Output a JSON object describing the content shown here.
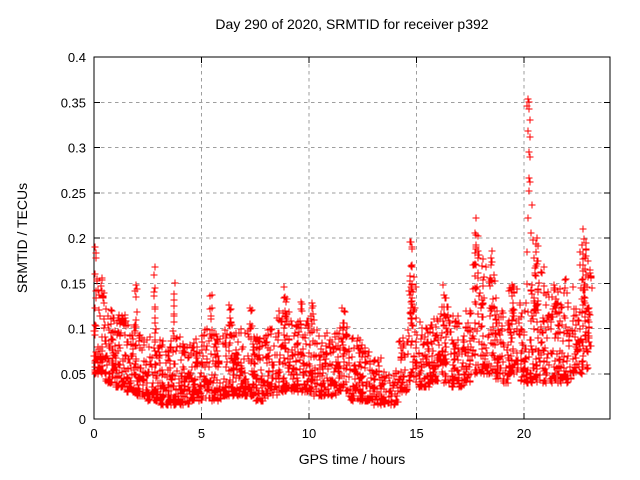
{
  "chart_data": {
    "type": "scatter",
    "title": "Day 290 of 2020, SRMTID for receiver p392",
    "xlabel": "GPS time / hours",
    "ylabel": "SRMTID / TECUs",
    "xlim": [
      0,
      24
    ],
    "ylim": [
      0,
      0.4
    ],
    "xticks": {
      "values": [
        0,
        5,
        10,
        15,
        20
      ],
      "labels": [
        "0",
        "5",
        "10",
        "15",
        "20"
      ]
    },
    "yticks": {
      "values": [
        0,
        0.05,
        0.1,
        0.15,
        0.2,
        0.25,
        0.3,
        0.35,
        0.4
      ],
      "labels": [
        "0",
        "0.05",
        "0.1",
        "0.15",
        "0.2",
        "0.25",
        "0.3",
        "0.35",
        "0.4"
      ]
    },
    "grid": {
      "show": true,
      "style": "dashed",
      "color": "#9e9e9e"
    },
    "legend": {
      "show": false
    },
    "marker": {
      "shape": "plus",
      "color": "#ff0000",
      "size": 7
    },
    "border_color": "#000000",
    "background_color": "#ffffff",
    "x_data_extent": [
      0,
      23.15
    ],
    "n_points_total_approx": 2800,
    "seed": 1290392,
    "segment_fields": [
      "x_start",
      "x_end",
      "n_points",
      "y_min",
      "y_max",
      "bottom_bias"
    ],
    "baseline_segments": [
      [
        0.0,
        0.5,
        70,
        0.05,
        0.16,
        1.5
      ],
      [
        0.5,
        1.0,
        65,
        0.04,
        0.125,
        1.7
      ],
      [
        1.0,
        1.5,
        65,
        0.035,
        0.115,
        1.7
      ],
      [
        1.5,
        2.0,
        65,
        0.03,
        0.112,
        1.7
      ],
      [
        2.0,
        2.5,
        60,
        0.025,
        0.095,
        1.7
      ],
      [
        2.5,
        3.0,
        60,
        0.02,
        0.1,
        1.7
      ],
      [
        3.0,
        3.5,
        60,
        0.015,
        0.088,
        1.6
      ],
      [
        3.5,
        4.0,
        60,
        0.015,
        0.092,
        1.6
      ],
      [
        4.0,
        4.5,
        58,
        0.015,
        0.085,
        1.6
      ],
      [
        4.5,
        5.0,
        58,
        0.02,
        0.09,
        1.6
      ],
      [
        5.0,
        5.5,
        58,
        0.02,
        0.1,
        1.6
      ],
      [
        5.5,
        6.0,
        58,
        0.02,
        0.095,
        1.6
      ],
      [
        6.0,
        6.5,
        58,
        0.025,
        0.105,
        1.6
      ],
      [
        6.5,
        7.0,
        58,
        0.025,
        0.1,
        1.6
      ],
      [
        7.0,
        7.5,
        58,
        0.025,
        0.105,
        1.6
      ],
      [
        7.5,
        8.0,
        58,
        0.02,
        0.095,
        1.6
      ],
      [
        8.0,
        8.5,
        58,
        0.025,
        0.1,
        1.6
      ],
      [
        8.5,
        9.1,
        68,
        0.03,
        0.12,
        1.6
      ],
      [
        9.1,
        9.6,
        58,
        0.03,
        0.11,
        1.6
      ],
      [
        9.6,
        10.2,
        68,
        0.03,
        0.115,
        1.6
      ],
      [
        10.2,
        10.8,
        65,
        0.025,
        0.1,
        1.6
      ],
      [
        10.8,
        11.4,
        65,
        0.025,
        0.095,
        1.6
      ],
      [
        11.4,
        11.8,
        45,
        0.03,
        0.11,
        1.5
      ],
      [
        11.8,
        12.4,
        65,
        0.02,
        0.09,
        1.6
      ],
      [
        12.4,
        13.0,
        62,
        0.02,
        0.085,
        1.6
      ],
      [
        13.0,
        13.4,
        38,
        0.015,
        0.07,
        1.5
      ],
      [
        13.4,
        14.2,
        55,
        0.015,
        0.055,
        1.3
      ],
      [
        14.2,
        14.6,
        42,
        0.03,
        0.09,
        1.5
      ],
      [
        14.6,
        15.0,
        48,
        0.04,
        0.16,
        1.6
      ],
      [
        15.0,
        15.6,
        65,
        0.035,
        0.11,
        1.6
      ],
      [
        15.6,
        16.1,
        56,
        0.04,
        0.12,
        1.6
      ],
      [
        16.1,
        16.6,
        56,
        0.04,
        0.135,
        1.6
      ],
      [
        16.6,
        17.2,
        65,
        0.035,
        0.115,
        1.6
      ],
      [
        17.2,
        17.6,
        48,
        0.04,
        0.12,
        1.6
      ],
      [
        17.6,
        18.1,
        55,
        0.05,
        0.185,
        1.8
      ],
      [
        18.1,
        18.7,
        62,
        0.05,
        0.17,
        1.8
      ],
      [
        18.7,
        19.3,
        62,
        0.04,
        0.12,
        1.6
      ],
      [
        19.3,
        19.8,
        55,
        0.05,
        0.15,
        1.7
      ],
      [
        19.8,
        20.1,
        36,
        0.04,
        0.13,
        1.6
      ],
      [
        20.1,
        20.5,
        48,
        0.04,
        0.16,
        1.8
      ],
      [
        20.5,
        21.0,
        58,
        0.04,
        0.175,
        1.8
      ],
      [
        21.0,
        21.6,
        62,
        0.04,
        0.145,
        1.7
      ],
      [
        21.6,
        22.3,
        70,
        0.04,
        0.155,
        1.7
      ],
      [
        22.3,
        22.6,
        36,
        0.05,
        0.125,
        1.6
      ],
      [
        22.6,
        23.0,
        52,
        0.05,
        0.19,
        1.4
      ],
      [
        23.0,
        23.15,
        16,
        0.08,
        0.165,
        1.2
      ]
    ],
    "column_fields": [
      "x_center",
      "x_halfwidth",
      "n_points",
      "y_min",
      "y_max"
    ],
    "peak_columns": [
      [
        1.95,
        0.06,
        6,
        0.1,
        0.148
      ],
      [
        2.85,
        0.05,
        8,
        0.1,
        0.168
      ],
      [
        3.72,
        0.07,
        7,
        0.09,
        0.147
      ],
      [
        5.45,
        0.06,
        7,
        0.09,
        0.14
      ],
      [
        6.35,
        0.08,
        8,
        0.09,
        0.127
      ],
      [
        7.3,
        0.06,
        6,
        0.09,
        0.126
      ],
      [
        8.9,
        0.08,
        10,
        0.1,
        0.146
      ],
      [
        9.65,
        0.06,
        8,
        0.1,
        0.132
      ],
      [
        10.15,
        0.07,
        7,
        0.09,
        0.13
      ],
      [
        11.6,
        0.07,
        8,
        0.09,
        0.126
      ],
      [
        14.75,
        0.08,
        14,
        0.1,
        0.196
      ],
      [
        16.3,
        0.07,
        7,
        0.1,
        0.15
      ],
      [
        17.8,
        0.1,
        12,
        0.12,
        0.205
      ],
      [
        18.45,
        0.08,
        8,
        0.12,
        0.186
      ],
      [
        19.5,
        0.08,
        8,
        0.1,
        0.155
      ],
      [
        20.6,
        0.08,
        10,
        0.12,
        0.2
      ],
      [
        21.35,
        0.08,
        6,
        0.1,
        0.155
      ],
      [
        22.8,
        0.1,
        16,
        0.1,
        0.195
      ]
    ],
    "outlier_points": [
      [
        0.05,
        0.19
      ],
      [
        0.07,
        0.183
      ],
      [
        0.1,
        0.178
      ],
      [
        0.05,
        0.16
      ],
      [
        0.12,
        0.152
      ],
      [
        2.85,
        0.168
      ],
      [
        3.75,
        0.15
      ],
      [
        14.72,
        0.196
      ],
      [
        14.78,
        0.19
      ],
      [
        17.77,
        0.222
      ],
      [
        17.7,
        0.205
      ],
      [
        18.5,
        0.186
      ],
      [
        20.15,
        0.346
      ],
      [
        20.2,
        0.354
      ],
      [
        20.24,
        0.35
      ],
      [
        20.21,
        0.342
      ],
      [
        20.28,
        0.33
      ],
      [
        20.2,
        0.318
      ],
      [
        20.26,
        0.312
      ],
      [
        20.22,
        0.295
      ],
      [
        20.3,
        0.29
      ],
      [
        20.24,
        0.266
      ],
      [
        20.3,
        0.262
      ],
      [
        20.22,
        0.252
      ],
      [
        20.35,
        0.236
      ],
      [
        20.18,
        0.222
      ],
      [
        20.32,
        0.205
      ],
      [
        20.4,
        0.198
      ],
      [
        20.15,
        0.185
      ],
      [
        20.45,
        0.178
      ],
      [
        20.62,
        0.2
      ],
      [
        20.58,
        0.193
      ],
      [
        22.75,
        0.21
      ],
      [
        22.8,
        0.199
      ],
      [
        22.7,
        0.192
      ],
      [
        23.05,
        0.165
      ],
      [
        23.1,
        0.158
      ]
    ]
  }
}
